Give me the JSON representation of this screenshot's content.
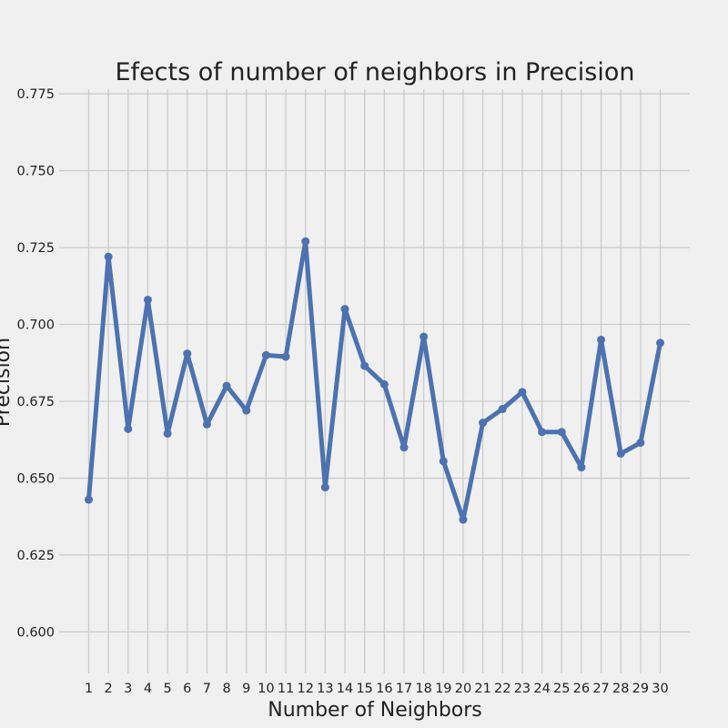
{
  "chart_data": {
    "type": "line",
    "title": "Efects of number of neighbors in Precision",
    "xlabel": "Number of Neighbors",
    "ylabel": "Precision",
    "x": [
      1,
      2,
      3,
      4,
      5,
      6,
      7,
      8,
      9,
      10,
      11,
      12,
      13,
      14,
      15,
      16,
      17,
      18,
      19,
      20,
      21,
      22,
      23,
      24,
      25,
      26,
      27,
      28,
      29,
      30
    ],
    "x_tick_labels": [
      "1",
      "2",
      "3",
      "4",
      "5",
      "6",
      "7",
      "8",
      "9",
      "10",
      "11",
      "12",
      "13",
      "14",
      "15",
      "16",
      "17",
      "18",
      "19",
      "20",
      "21",
      "22",
      "23",
      "24",
      "25",
      "26",
      "27",
      "28",
      "29",
      "30"
    ],
    "y_ticks": [
      0.6,
      0.625,
      0.65,
      0.675,
      0.7,
      0.725,
      0.75,
      0.775
    ],
    "y_tick_labels": [
      "0.600",
      "0.625",
      "0.650",
      "0.675",
      "0.700",
      "0.725",
      "0.750",
      "0.775"
    ],
    "ylim": [
      0.5865,
      0.7765
    ],
    "xlim": [
      -0.5,
      31.5
    ],
    "grid": true,
    "series": [
      {
        "values": [
          0.643,
          0.722,
          0.666,
          0.708,
          0.6645,
          0.6905,
          0.6675,
          0.68,
          0.672,
          0.69,
          0.6895,
          0.727,
          0.647,
          0.705,
          0.6865,
          0.6805,
          0.66,
          0.696,
          0.6555,
          0.6365,
          0.668,
          0.6725,
          0.678,
          0.665,
          0.665,
          0.6535,
          0.695,
          0.658,
          0.6615,
          0.694
        ],
        "color": "#4c72b0"
      }
    ],
    "background": "#f0f0f0"
  }
}
